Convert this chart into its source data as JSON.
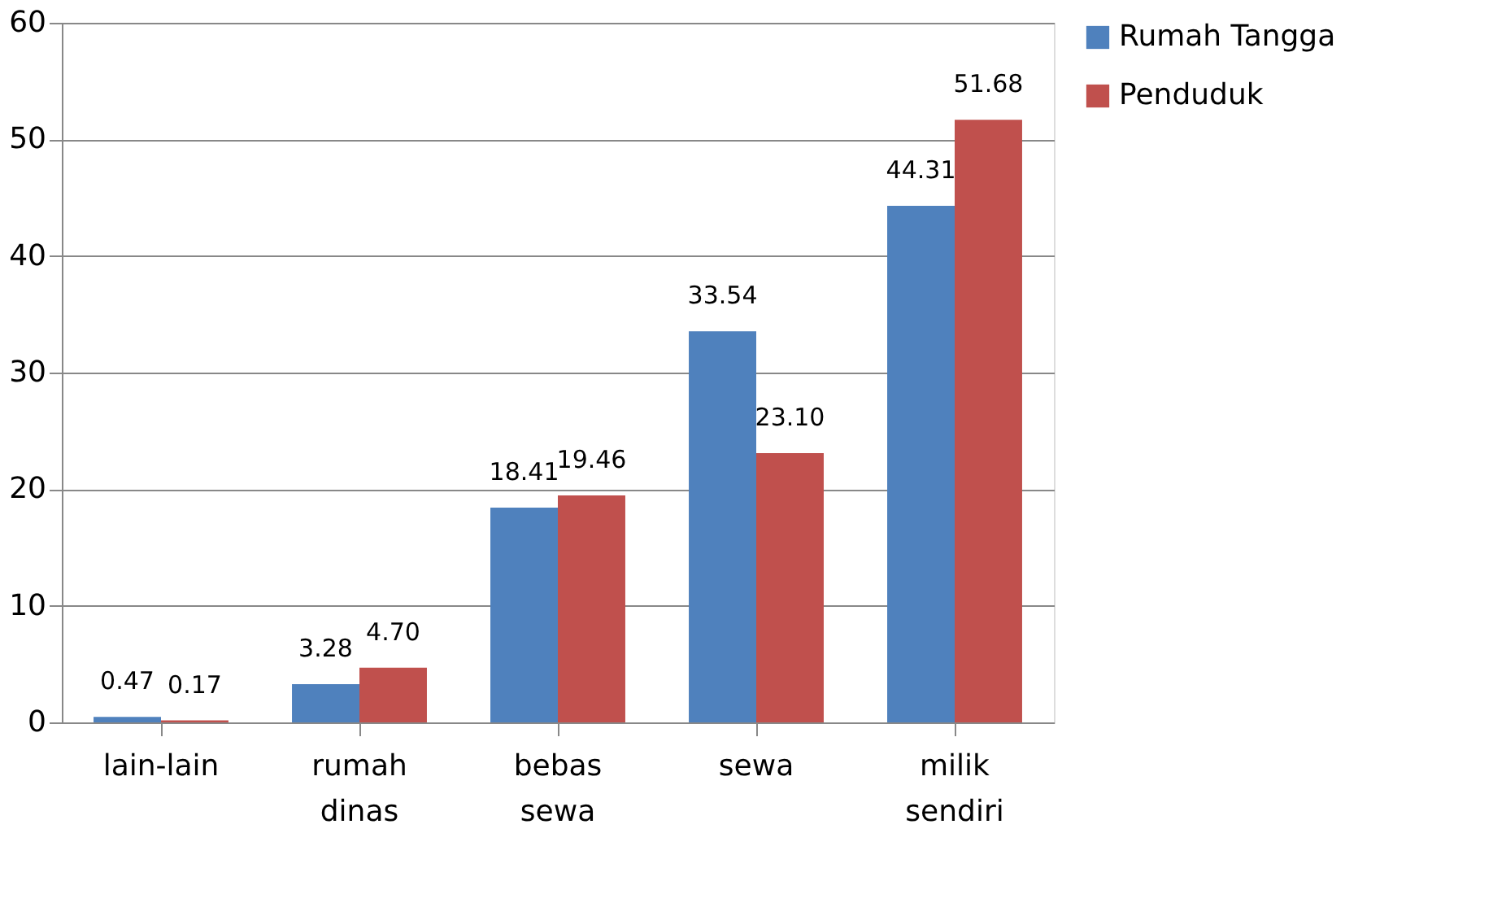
{
  "chart_data": {
    "type": "bar",
    "categories": [
      "lain-lain",
      "rumah dinas",
      "bebas sewa",
      "sewa",
      "milik sendiri"
    ],
    "series": [
      {
        "name": "Rumah Tangga",
        "color": "#4f81bd",
        "values": [
          0.47,
          3.28,
          18.41,
          33.54,
          44.31
        ],
        "value_labels": [
          "0.47",
          "3.28",
          "18.41",
          "33.54",
          "44.31"
        ]
      },
      {
        "name": "Penduduk",
        "color": "#c0504d",
        "values": [
          0.17,
          4.7,
          19.46,
          23.1,
          51.68
        ],
        "value_labels": [
          "0.17",
          "4.70",
          "19.46",
          "23.10",
          "51.68"
        ]
      }
    ],
    "ylim": [
      0,
      60
    ],
    "yticks": [
      0,
      10,
      20,
      30,
      40,
      50,
      60
    ],
    "grid": "y",
    "legend": "right"
  }
}
